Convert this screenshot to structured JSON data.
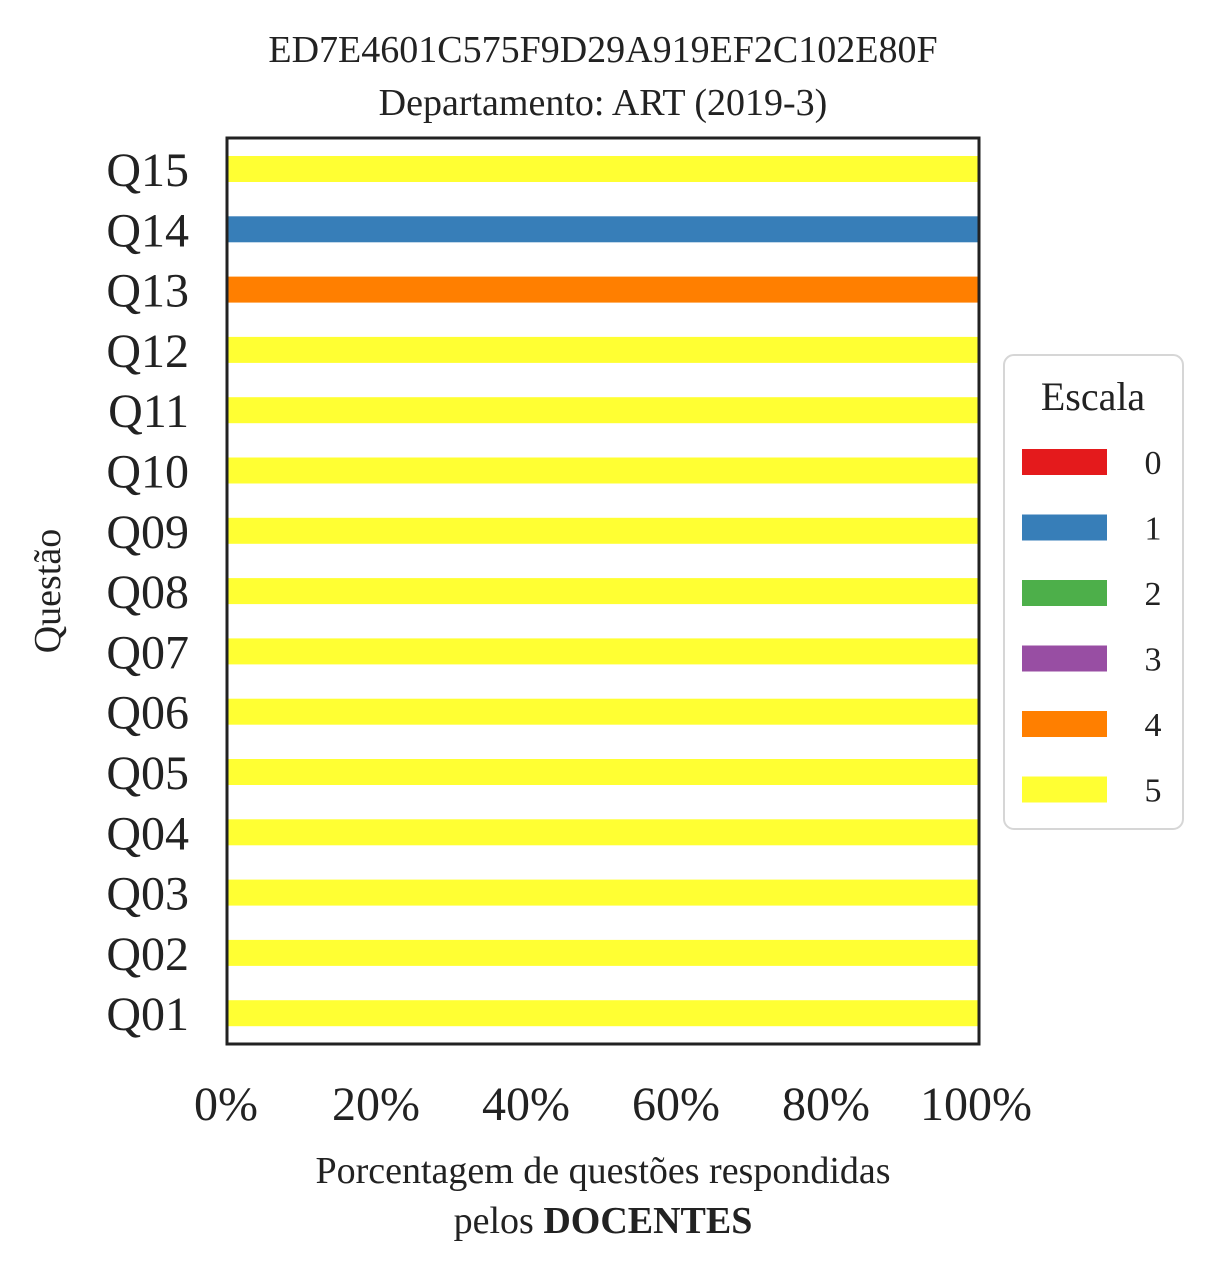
{
  "chart_data": {
    "type": "bar",
    "orientation": "horizontal",
    "stacked": true,
    "title": "ED7E4601C575F9D29A919EF2C102E80F",
    "subtitle": "Departamento: ART (2019-3)",
    "xlabel_line1": "Porcentagem de questões respondidas",
    "xlabel_line2_prefix": "pelos ",
    "xlabel_line2_bold": "DOCENTES",
    "ylabel": "Questão",
    "xlim": [
      0,
      100
    ],
    "x_ticks": [
      "0%",
      "20%",
      "40%",
      "60%",
      "80%",
      "100%"
    ],
    "categories": [
      "Q01",
      "Q02",
      "Q03",
      "Q04",
      "Q05",
      "Q06",
      "Q07",
      "Q08",
      "Q09",
      "Q10",
      "Q11",
      "Q12",
      "Q13",
      "Q14",
      "Q15"
    ],
    "series": [
      {
        "name": "0",
        "color": "#e41a1c",
        "values": [
          0,
          0,
          0,
          0,
          0,
          0,
          0,
          0,
          0,
          0,
          0,
          0,
          0,
          0,
          0
        ]
      },
      {
        "name": "1",
        "color": "#377eb8",
        "values": [
          0,
          0,
          0,
          0,
          0,
          0,
          0,
          0,
          0,
          0,
          0,
          0,
          0,
          100,
          0
        ]
      },
      {
        "name": "2",
        "color": "#4daf4a",
        "values": [
          0,
          0,
          0,
          0,
          0,
          0,
          0,
          0,
          0,
          0,
          0,
          0,
          0,
          0,
          0
        ]
      },
      {
        "name": "3",
        "color": "#984ea3",
        "values": [
          0,
          0,
          0,
          0,
          0,
          0,
          0,
          0,
          0,
          0,
          0,
          0,
          0,
          0,
          0
        ]
      },
      {
        "name": "4",
        "color": "#ff7f00",
        "values": [
          0,
          0,
          0,
          0,
          0,
          0,
          0,
          0,
          0,
          0,
          0,
          0,
          100,
          0,
          0
        ]
      },
      {
        "name": "5",
        "color": "#ffff33",
        "values": [
          100,
          100,
          100,
          100,
          100,
          100,
          100,
          100,
          100,
          100,
          100,
          100,
          0,
          0,
          100
        ]
      }
    ],
    "legend": {
      "title": "Escala",
      "position": "right"
    },
    "grid": false
  }
}
